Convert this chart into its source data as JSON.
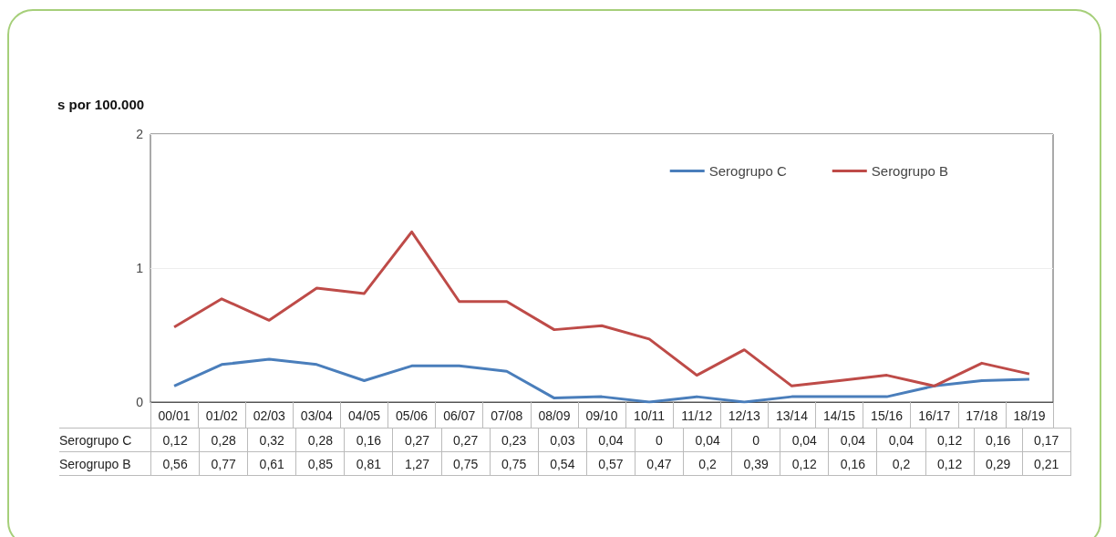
{
  "chart_data": {
    "type": "line",
    "ylabel": "s por 100.000",
    "categories": [
      "00/01",
      "01/02",
      "02/03",
      "03/04",
      "04/05",
      "05/06",
      "06/07",
      "07/08",
      "08/09",
      "09/10",
      "10/11",
      "11/12",
      "12/13",
      "13/14",
      "14/15",
      "15/16",
      "16/17",
      "17/18",
      "18/19"
    ],
    "series": [
      {
        "name": "Serogrupo C",
        "color": "#4a7ebb",
        "values": [
          0.12,
          0.28,
          0.32,
          0.28,
          0.16,
          0.27,
          0.27,
          0.23,
          0.03,
          0.04,
          0,
          0.04,
          0,
          0.04,
          0.04,
          0.04,
          0.12,
          0.16,
          0.17
        ],
        "value_labels": [
          "0,12",
          "0,28",
          "0,32",
          "0,28",
          "0,16",
          "0,27",
          "0,27",
          "0,23",
          "0,03",
          "0,04",
          "0",
          "0,04",
          "0",
          "0,04",
          "0,04",
          "0,04",
          "0,12",
          "0,16",
          "0,17"
        ]
      },
      {
        "name": "Serogrupo B",
        "color": "#be4b48",
        "values": [
          0.56,
          0.77,
          0.61,
          0.85,
          0.81,
          1.27,
          0.75,
          0.75,
          0.54,
          0.57,
          0.47,
          0.2,
          0.39,
          0.12,
          0.16,
          0.2,
          0.12,
          0.29,
          0.21
        ],
        "value_labels": [
          "0,56",
          "0,77",
          "0,61",
          "0,85",
          "0,81",
          "1,27",
          "0,75",
          "0,75",
          "0,54",
          "0,57",
          "0,47",
          "0,2",
          "0,39",
          "0,12",
          "0,16",
          "0,2",
          "0,12",
          "0,29",
          "0,21"
        ]
      }
    ],
    "ylim": [
      0,
      2
    ],
    "yticks": [
      0,
      1,
      2
    ],
    "grid": "y",
    "legend": "top right",
    "marker": "none",
    "line_style": "solid"
  }
}
